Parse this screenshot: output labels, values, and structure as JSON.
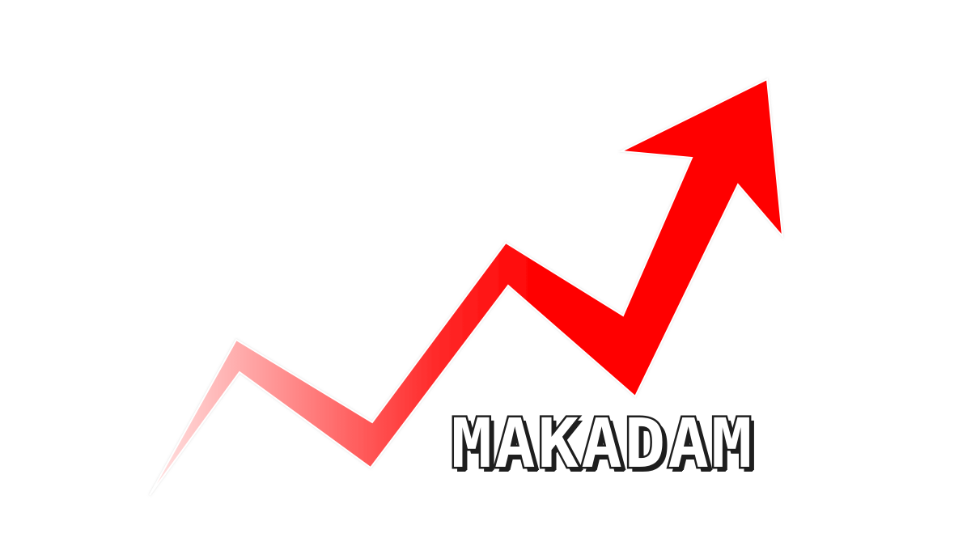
{
  "logo": {
    "wordmark": "MAKADAM",
    "icon": "rising-zigzag-arrow-icon",
    "colors": {
      "background": "#ffffff",
      "arrow": "#ff0000",
      "arrow_fade_start": "#ffd8d8",
      "wordmark_fill": "#ffffff",
      "wordmark_outline": "#1e1e1e"
    }
  }
}
